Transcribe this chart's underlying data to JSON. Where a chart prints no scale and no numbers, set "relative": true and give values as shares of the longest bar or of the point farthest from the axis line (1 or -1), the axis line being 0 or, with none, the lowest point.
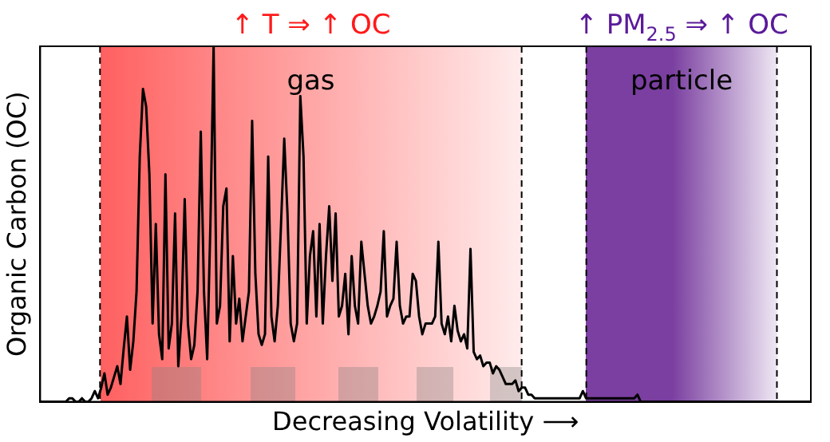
{
  "chart_data": {
    "type": "line",
    "relative": true,
    "xlabel": "Decreasing Volatility ⟶",
    "ylabel": "Organic Carbon (OC)",
    "categories": [
      null,
      null,
      null,
      null,
      null,
      null,
      null,
      null,
      null,
      null,
      null,
      null,
      null,
      null,
      null,
      null,
      null,
      null,
      null,
      null,
      null,
      null,
      null,
      null,
      null,
      null,
      null,
      null,
      null,
      null,
      null,
      null,
      null,
      null,
      null,
      null,
      null,
      null,
      null,
      null,
      null,
      null,
      null,
      null,
      null,
      null,
      null,
      null,
      null,
      null,
      null,
      null,
      null,
      null,
      null,
      null,
      null,
      null,
      null,
      null,
      null,
      null,
      null,
      null,
      null,
      null,
      null,
      null,
      null,
      null,
      null,
      null,
      null,
      null,
      null,
      null,
      null,
      null,
      null,
      null,
      null,
      null,
      null,
      null,
      null,
      null,
      null,
      null,
      null,
      null,
      null,
      null,
      null,
      null,
      null,
      null,
      null,
      null,
      null,
      null,
      null,
      null,
      null,
      null,
      null,
      null,
      null,
      null,
      null,
      null,
      null,
      null,
      null,
      null,
      null,
      null,
      null,
      null,
      null,
      null,
      null,
      null,
      null,
      null,
      null,
      null,
      null,
      null,
      null,
      null,
      null,
      null,
      null,
      null,
      null,
      null,
      null,
      null,
      null,
      null,
      null,
      null,
      null,
      null,
      null,
      null,
      null,
      null,
      null,
      null,
      null,
      null,
      null,
      null,
      null,
      null,
      null,
      null,
      null,
      null,
      null,
      null,
      null,
      null,
      null,
      null,
      null,
      null,
      null,
      null,
      null,
      null,
      null,
      null,
      null,
      null,
      null,
      null,
      null,
      null,
      null,
      null,
      null,
      null,
      null,
      null,
      null,
      null,
      null,
      null,
      null,
      null,
      null,
      null,
      null,
      null,
      null,
      null,
      null,
      null,
      null,
      null,
      null,
      null,
      null,
      null,
      null,
      null,
      null,
      null,
      null,
      null,
      null,
      null,
      null,
      null,
      null,
      null,
      null,
      null,
      null,
      null,
      null,
      null,
      null,
      null,
      null,
      null,
      null,
      null,
      null,
      null,
      null,
      null,
      null,
      null,
      null,
      null,
      null,
      null,
      null
    ],
    "series": [
      {
        "color": "#000000",
        "values": [
          0,
          0,
          0,
          0,
          0,
          0,
          0,
          0,
          0,
          0.01,
          0.01,
          0,
          0,
          0.01,
          0,
          0,
          0.01,
          0.03,
          0.01,
          0.04,
          0.08,
          0.02,
          0.04,
          0.07,
          0.1,
          0.05,
          0.15,
          0.24,
          0.09,
          0.17,
          0.31,
          0.69,
          0.88,
          0.83,
          0.64,
          0.22,
          0.5,
          0.19,
          0.12,
          0.64,
          0.15,
          0.22,
          0.53,
          0.1,
          0.24,
          0.57,
          0.22,
          0.12,
          0.16,
          0.31,
          0.76,
          0.31,
          0.12,
          0.5,
          1.0,
          0.22,
          0.27,
          0.55,
          0.6,
          0.17,
          0.41,
          0.22,
          0.29,
          0.17,
          0.24,
          0.31,
          0.79,
          0.36,
          0.19,
          0.16,
          0.19,
          0.69,
          0.24,
          0.17,
          0.27,
          0.5,
          0.74,
          0.53,
          0.22,
          0.17,
          0.22,
          0.86,
          0.69,
          0.22,
          0.41,
          0.48,
          0.24,
          0.5,
          0.22,
          0.41,
          0.55,
          0.34,
          0.53,
          0.24,
          0.27,
          0.36,
          0.19,
          0.41,
          0.27,
          0.22,
          0.45,
          0.36,
          0.27,
          0.22,
          0.24,
          0.27,
          0.31,
          0.48,
          0.24,
          0.27,
          0.29,
          0.45,
          0.27,
          0.22,
          0.24,
          0.24,
          0.36,
          0.34,
          0.24,
          0.19,
          0.22,
          0.22,
          0.22,
          0.24,
          0.45,
          0.22,
          0.19,
          0.24,
          0.17,
          0.27,
          0.2,
          0.17,
          0.19,
          0.15,
          0.43,
          0.14,
          0.12,
          0.13,
          0.1,
          0.11,
          0.11,
          0.08,
          0.1,
          0.09,
          0.07,
          0.05,
          0.05,
          0.05,
          0.06,
          0.03,
          0.04,
          0.04,
          0.02,
          0.02,
          0.01,
          0.01,
          0.01,
          0.01,
          0.01,
          0.01,
          0.01,
          0.01,
          0.01,
          0.01,
          0.01,
          0.01,
          0.01,
          0.01,
          0.01,
          0.03,
          0.01,
          0.01,
          0.01,
          0.01,
          0.01,
          0.01,
          0.01,
          0.01,
          0.01,
          0.01,
          0.01,
          0.01,
          0.01,
          0.01,
          0.01,
          0.01,
          0.02,
          0,
          0,
          0,
          0,
          0,
          0,
          0,
          0,
          0,
          0,
          0,
          0,
          0,
          0,
          0,
          0,
          0,
          0,
          0,
          0,
          0,
          0,
          0,
          0,
          0,
          0,
          0,
          0,
          0,
          0,
          0,
          0,
          0,
          0,
          0,
          0,
          0,
          0,
          0,
          0,
          0,
          0,
          0,
          0,
          0,
          0,
          0,
          0,
          0,
          0,
          0,
          0,
          0,
          0
        ]
      }
    ],
    "annotations": [
      "↑ T ⇒ ↑ OC",
      "gas",
      "↑ PM$_{2.5}$ ⇒ ↑ OC",
      "particle"
    ]
  }
}
